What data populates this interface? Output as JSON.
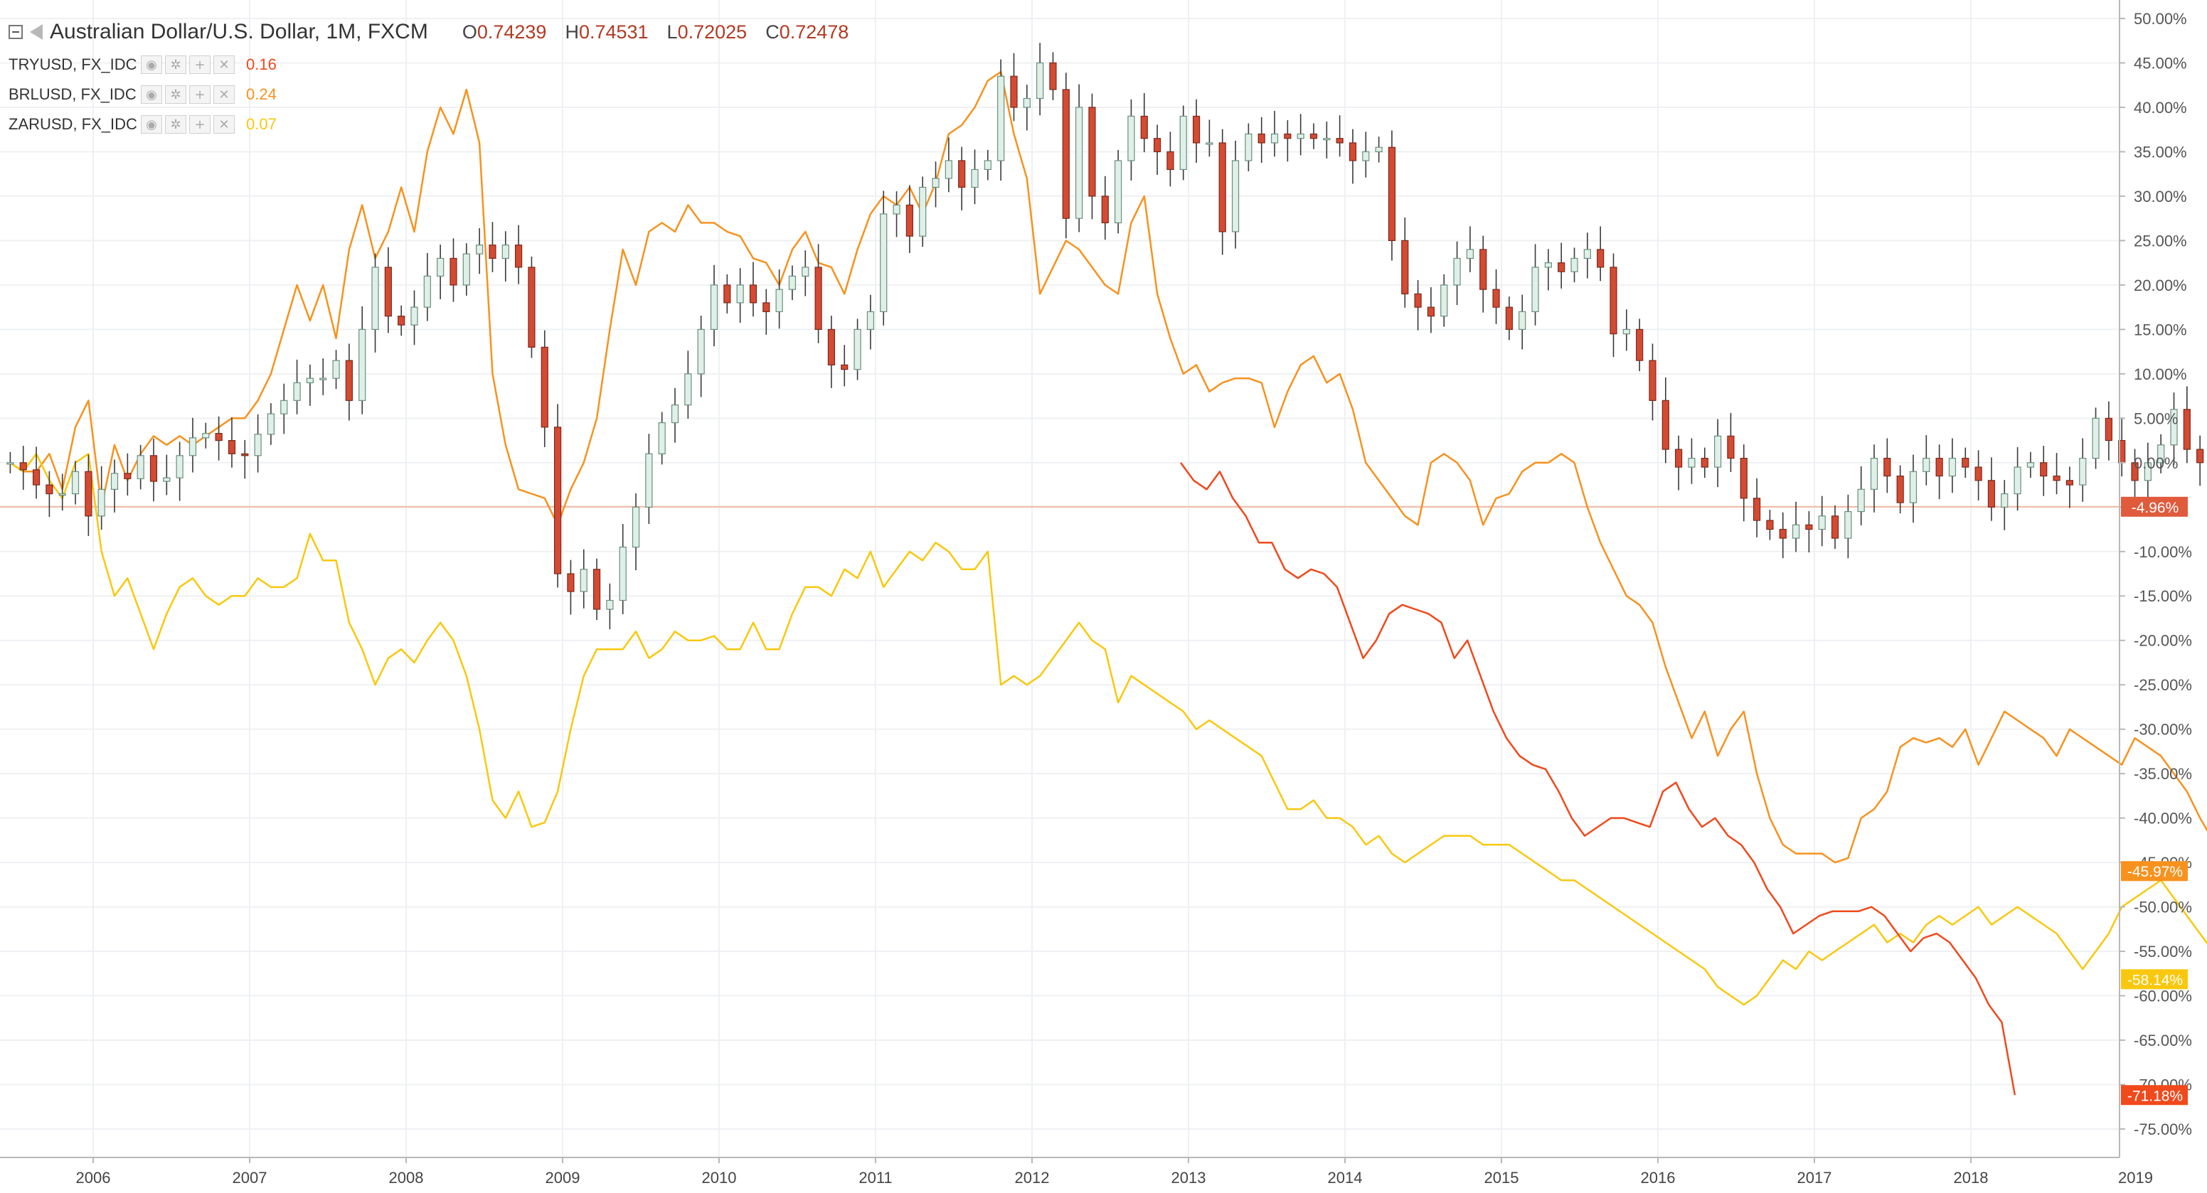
{
  "header": {
    "title": "Australian Dollar/U.S. Dollar, 1M, FXCM",
    "ohlc": [
      {
        "label": "O",
        "value": "0.74239"
      },
      {
        "label": "H",
        "value": "0.74531"
      },
      {
        "label": "L",
        "value": "0.72025"
      },
      {
        "label": "C",
        "value": "0.72478"
      }
    ]
  },
  "indicators": [
    {
      "name": "TRYUSD, FX_IDC",
      "value": "0.16",
      "color": "#f0491c"
    },
    {
      "name": "BRLUSD, FX_IDC",
      "value": "0.24",
      "color": "#f7921e"
    },
    {
      "name": "ZARUSD, FX_IDC",
      "value": "0.07",
      "color": "#f9c80e"
    }
  ],
  "icons": [
    "collapse-icon",
    "symbol-flag-icon",
    "eye-icon",
    "settings-icon",
    "add-icon",
    "close-icon",
    "chevron-down-icon"
  ],
  "chart_data": {
    "type": "candlestick+line",
    "y_axis": {
      "unit": "%",
      "range": [
        -77,
        52
      ],
      "ticks": [
        "50.00%",
        "45.00%",
        "40.00%",
        "35.00%",
        "30.00%",
        "25.00%",
        "20.00%",
        "15.00%",
        "10.00%",
        "5.00%",
        "0.00%",
        "-5.00%",
        "-10.00%",
        "-15.00%",
        "-20.00%",
        "-25.00%",
        "-30.00%",
        "-35.00%",
        "-40.00%",
        "-45.00%",
        "-50.00%",
        "-55.00%",
        "-60.00%",
        "-65.00%",
        "-70.00%",
        "-75.00%"
      ],
      "position": "right"
    },
    "x_axis": {
      "range": [
        2005.45,
        2018.95
      ],
      "ticks": [
        "2006",
        "2007",
        "2008",
        "2009",
        "2010",
        "2011",
        "2012",
        "2013",
        "2014",
        "2015",
        "2016",
        "2017",
        "2018",
        "2019"
      ],
      "tick_values": [
        2006,
        2007,
        2008,
        2009,
        2010,
        2011,
        2012,
        2013,
        2014,
        2015,
        2016,
        2017,
        2018,
        2019
      ]
    },
    "grid": true,
    "current_level_line": -4.96,
    "price_labels": [
      {
        "text": "-4.96%",
        "value": -4.96,
        "color": "#e05a3c"
      },
      {
        "text": "-45.97%",
        "value": -45.97,
        "color": "#f7921e"
      },
      {
        "text": "-58.14%",
        "value": -58.14,
        "color": "#f9c80e"
      },
      {
        "text": "-71.18%",
        "value": -71.18,
        "color": "#f0491c"
      }
    ],
    "candles": {
      "name": "Australian Dollar/U.S. Dollar",
      "up_color": "#dff0e8",
      "down_color": "#d54a32",
      "t_start": 2005.47,
      "step": 0.0833,
      "closes": [
        0,
        -0.8,
        -2.5,
        -3.5,
        -3.5,
        -1.0,
        -6.0,
        -3.0,
        -1.2,
        -1.8,
        0.8,
        -2.1,
        -1.7,
        0.8,
        2.8,
        3.3,
        2.5,
        1.0,
        0.8,
        3.2,
        5.5,
        7.0,
        9.0,
        9.5,
        9.5,
        11.5,
        7.0,
        15.0,
        22.0,
        16.5,
        15.5,
        17.5,
        21.0,
        23.0,
        20.0,
        23.5,
        24.5,
        23.0,
        24.5,
        22.0,
        13.0,
        4.0,
        -12.5,
        -14.5,
        -12.0,
        -16.5,
        -15.5,
        -9.5,
        -5.0,
        1.0,
        4.5,
        6.5,
        10.0,
        15.0,
        20.0,
        18.0,
        20.0,
        18.0,
        17.0,
        19.5,
        21.0,
        22.0,
        15.0,
        11.0,
        10.5,
        15.0,
        17.0,
        28.0,
        29.0,
        25.5,
        31.0,
        32.0,
        34.0,
        31.0,
        33.0,
        34.0,
        43.5,
        40.0,
        41.0,
        45.0,
        42.0,
        27.5,
        40.0,
        30.0,
        27.0,
        34.0,
        39.0,
        36.5,
        35.0,
        33.0,
        39.0,
        36.0,
        36.0,
        26.0,
        34.0,
        37.0,
        36.0,
        37.0,
        36.5,
        37.0,
        36.5,
        36.5,
        36.0,
        34.0,
        35.0,
        35.5,
        25.0,
        19.0,
        17.5,
        16.5,
        20.0,
        23.0,
        24.0,
        19.5,
        17.5,
        15.0,
        17.0,
        22.0,
        22.5,
        21.5,
        23.0,
        24.0,
        22.0,
        14.5,
        15.0,
        11.5,
        7.0,
        1.5,
        -0.5,
        0.5,
        -0.5,
        3.0,
        0.5,
        -4.0,
        -6.5,
        -7.5,
        -8.5,
        -7.0,
        -7.5,
        -6.0,
        -8.5,
        -5.5,
        -3.0,
        0.5,
        -1.5,
        -4.5,
        -1.0,
        0.5,
        -1.5,
        0.5,
        -0.5,
        -2.0,
        -5.0,
        -3.5,
        -0.5,
        0.0,
        -1.5,
        -2.0,
        -2.5,
        0.5,
        5.0,
        2.5,
        0.0,
        -2.0,
        0.0,
        2.0,
        6.0,
        1.5,
        0.0,
        -1.0,
        -3.5,
        -1.5,
        -4.0,
        -4.96
      ]
    },
    "series": [
      {
        "name": "BRLUSD, FX_IDC",
        "color": "#f7921e",
        "t_start": 2005.47,
        "step": 0.0833,
        "values": [
          0,
          -1,
          -1,
          1,
          -3,
          4,
          7,
          -5,
          2,
          -2,
          1,
          3,
          2,
          3,
          2,
          3,
          4,
          5,
          5,
          7,
          10,
          15,
          20,
          16,
          20,
          14,
          24,
          29,
          23,
          26,
          31,
          26,
          35,
          40,
          37,
          42,
          36,
          10,
          2,
          -3,
          -3.5,
          -4,
          -7,
          -3,
          0,
          5,
          15,
          24,
          20,
          26,
          27,
          26,
          29,
          27,
          27,
          26,
          25.5,
          23,
          22.5,
          20,
          24,
          26,
          22.5,
          22,
          19,
          24,
          28,
          30,
          29,
          31,
          28,
          31.5,
          37,
          38,
          40,
          43,
          44,
          37,
          32,
          19,
          22,
          25,
          24,
          22,
          20,
          19,
          27,
          30,
          19,
          14,
          10,
          11,
          8,
          9,
          9.5,
          9.5,
          9,
          4,
          8,
          11,
          12,
          9,
          10,
          6,
          0,
          -2,
          -4,
          -6,
          -7,
          0,
          1,
          0,
          -2,
          -7,
          -4,
          -3.5,
          -1,
          0,
          0,
          1,
          0,
          -5,
          -9,
          -12,
          -15,
          -16,
          -18,
          -23,
          -27,
          -31,
          -28,
          -33,
          -30,
          -28,
          -35,
          -40,
          -43,
          -44,
          -44,
          -44,
          -45,
          -44.5,
          -40,
          -39,
          -37,
          -32,
          -31,
          -31.5,
          -31,
          -32,
          -30,
          -34,
          -31,
          -28,
          -29,
          -30,
          -31,
          -33,
          -30,
          -31,
          -32,
          -33,
          -34,
          -31,
          -32,
          -33,
          -35,
          -37,
          -40,
          -42.5,
          -40.5,
          -45.97
        ]
      },
      {
        "name": "ZARUSD, FX_IDC",
        "color": "#f9c80e",
        "t_start": 2005.47,
        "step": 0.0833,
        "values": [
          0,
          -1,
          1,
          -2,
          -4,
          0,
          1,
          -10,
          -15,
          -13,
          -17,
          -21,
          -17,
          -14,
          -13,
          -15,
          -16,
          -15,
          -15,
          -13,
          -14,
          -14,
          -13,
          -8,
          -11,
          -11,
          -18,
          -21,
          -25,
          -22,
          -21,
          -22.5,
          -20,
          -18,
          -20,
          -24,
          -30,
          -38,
          -40,
          -37,
          -41,
          -40.5,
          -37,
          -30,
          -24,
          -21,
          -21,
          -21,
          -19,
          -22,
          -21,
          -19,
          -20,
          -20,
          -19.5,
          -21,
          -21,
          -18,
          -21,
          -21,
          -17,
          -14,
          -14,
          -15,
          -12,
          -13,
          -10,
          -14,
          -12,
          -10,
          -11,
          -9,
          -10,
          -12,
          -12,
          -10,
          -25,
          -24,
          -25,
          -24,
          -22,
          -20,
          -18,
          -20,
          -21,
          -27,
          -24,
          -25,
          -26,
          -27,
          -28,
          -30,
          -29,
          -30,
          -31,
          -32,
          -33,
          -36,
          -39,
          -39,
          -38,
          -40,
          -40,
          -41,
          -43,
          -42,
          -44,
          -45,
          -44,
          -43,
          -42,
          -42,
          -42,
          -43,
          -43,
          -43,
          -44,
          -45,
          -46,
          -47,
          -47,
          -48,
          -49,
          -50,
          -51,
          -52,
          -53,
          -54,
          -55,
          -56,
          -57,
          -59,
          -60,
          -61,
          -60,
          -58,
          -56,
          -57,
          -55,
          -56,
          -55,
          -54,
          -53,
          -52,
          -54,
          -53,
          -54,
          -52,
          -51,
          -52,
          -51,
          -50,
          -52,
          -51,
          -50,
          -51,
          -52,
          -53,
          -55,
          -57,
          -55,
          -53,
          -50,
          -49,
          -48,
          -47,
          -49,
          -51,
          -53,
          -55,
          -56,
          -54,
          -58.14
        ]
      },
      {
        "name": "TRYUSD, FX_IDC",
        "color": "#f0491c",
        "t_start": 2012.95,
        "step": 0.0833,
        "values": [
          0,
          -2,
          -3,
          -1,
          -4,
          -6,
          -9,
          -9,
          -12,
          -13,
          -12,
          -12.5,
          -14,
          -18,
          -22,
          -20,
          -17,
          -16,
          -16.5,
          -17,
          -18,
          -22,
          -20,
          -24,
          -28,
          -31,
          -33,
          -34,
          -34.5,
          -37,
          -40,
          -42,
          -41,
          -40,
          -40,
          -40.5,
          -41,
          -37,
          -36,
          -39,
          -41,
          -40,
          -42,
          -43,
          -45,
          -48,
          -50,
          -53,
          -52,
          -51,
          -50.5,
          -50.5,
          -50.5,
          -50,
          -51,
          -53,
          -55,
          -53.5,
          -53,
          -54,
          -56,
          -58,
          -61,
          -63,
          -71.18
        ]
      }
    ]
  }
}
